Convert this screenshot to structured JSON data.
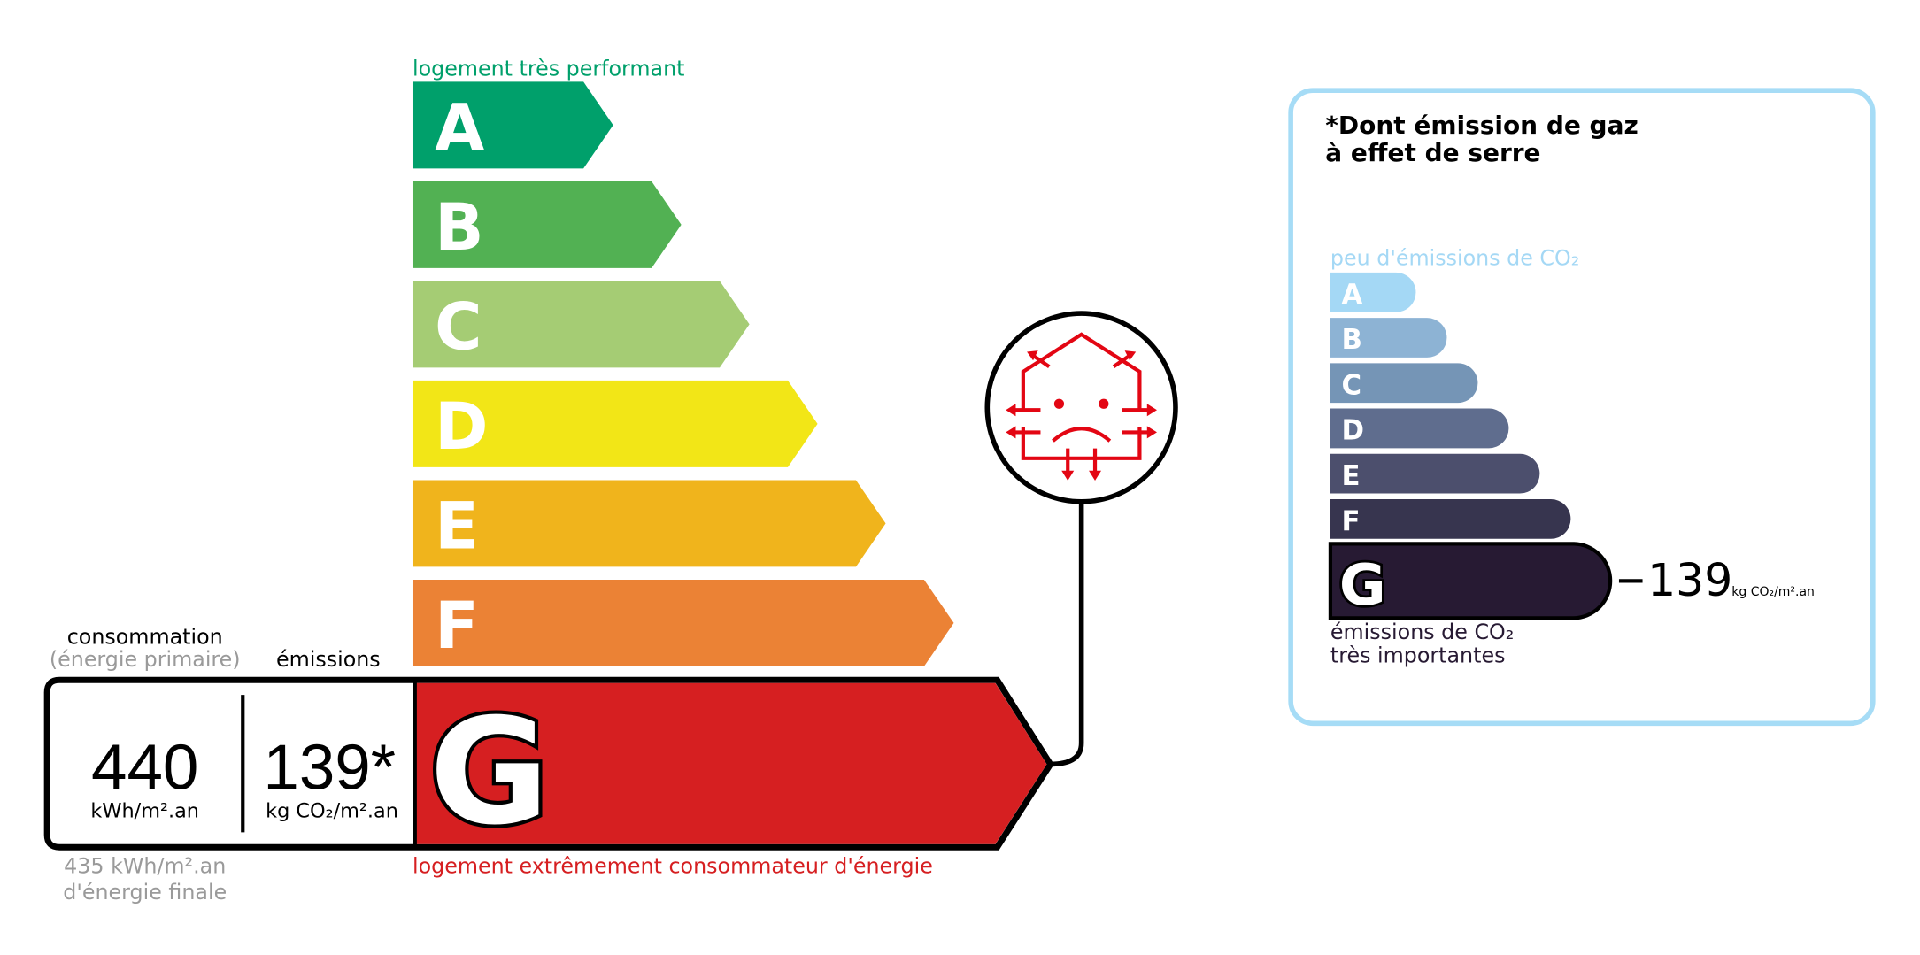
{
  "dpe": {
    "top_label": "logement très performant",
    "bottom_label": "logement extrêmement consommateur d'énergie",
    "classes": [
      {
        "letter": "A",
        "color": "#00a06b"
      },
      {
        "letter": "B",
        "color": "#52b153"
      },
      {
        "letter": "C",
        "color": "#a5cc74"
      },
      {
        "letter": "D",
        "color": "#f2e617"
      },
      {
        "letter": "E",
        "color": "#f0b41c"
      },
      {
        "letter": "F",
        "color": "#eb8235"
      },
      {
        "letter": "G",
        "color": "#d61f21"
      }
    ],
    "current_class": "G",
    "consumption_header": "consommation",
    "consumption_subheader": "(énergie primaire)",
    "emissions_header": "émissions",
    "consumption_value": "440",
    "consumption_unit": "kWh/m².an",
    "emissions_value": "139*",
    "emissions_unit": "kg CO₂/m².an",
    "final_energy_line1": "435 kWh/m².an",
    "final_energy_line2": "d'énergie finale",
    "icon": "sad-house-heat-loss-icon"
  },
  "ges": {
    "title_line1": "*Dont émission de gaz",
    "title_line2": "à effet de serre",
    "top_label": "peu d'émissions de CO₂",
    "bottom_label_line1": "émissions de CO₂",
    "bottom_label_line2": "très importantes",
    "classes": [
      {
        "letter": "A",
        "color": "#a4d8f5"
      },
      {
        "letter": "B",
        "color": "#8db3d4"
      },
      {
        "letter": "C",
        "color": "#7595b6"
      },
      {
        "letter": "D",
        "color": "#5f6d8e"
      },
      {
        "letter": "E",
        "color": "#4c4f6d"
      },
      {
        "letter": "F",
        "color": "#37354f"
      },
      {
        "letter": "G",
        "color": "#271a33"
      }
    ],
    "current_class": "G",
    "value": "139",
    "unit": "kg CO₂/m².an",
    "border_color": "#a6dcf6"
  }
}
